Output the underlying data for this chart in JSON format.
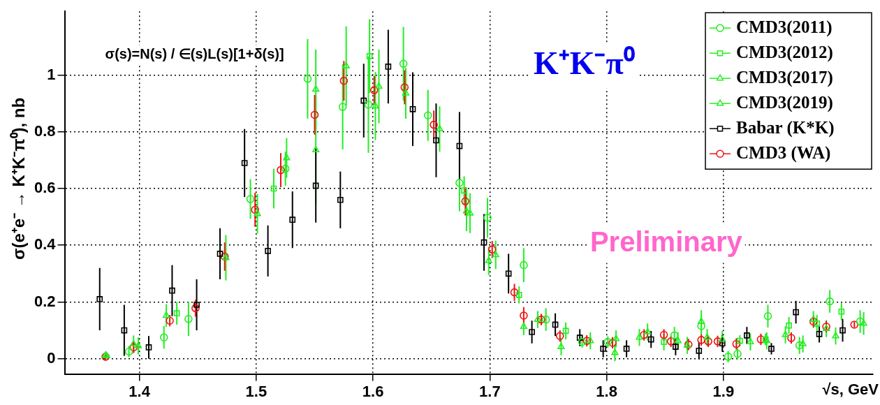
{
  "chart_data": {
    "type": "scatter",
    "xlabel": "√s, GeV",
    "ylabel": "σ(e⁺e⁻ → K⁺K⁻π⁰), nb",
    "annotations": [
      "σ(s)=N(s) / ∈(s)L(s)[1+δ(s)]",
      "K⁺K⁻π⁰",
      "Preliminary"
    ],
    "xlim": [
      1.336,
      2.028
    ],
    "ylim": [
      -0.054,
      1.225
    ],
    "xticks": [
      1.4,
      1.5,
      1.6,
      1.7,
      1.8,
      1.9
    ],
    "yticks": [
      0,
      0.2,
      0.4,
      0.6,
      0.8,
      1
    ],
    "grid": true,
    "line_style": "dotted",
    "legend": "top right",
    "series": [
      {
        "name": "CMD3(2011)",
        "color": "#22ee22",
        "marker": "circle",
        "x": [
          1.391,
          1.421,
          1.442,
          1.495,
          1.525,
          1.544,
          1.574,
          1.596,
          1.626,
          1.647,
          1.674,
          1.698,
          1.729,
          1.748,
          1.779,
          1.801,
          1.858,
          1.881,
          1.904,
          1.912,
          1.938,
          1.965,
          1.991,
          2.017
        ],
        "values": [
          0.025,
          0.075,
          0.14,
          0.563,
          0.67,
          0.987,
          0.888,
          0.896,
          1.04,
          0.858,
          0.62,
          0.497,
          0.33,
          0.138,
          0.059,
          0.059,
          0.082,
          0.115,
          0.007,
          0.017,
          0.15,
          0.047,
          0.202,
          0.131
        ],
        "errors": [
          0.02,
          0.04,
          0.06,
          0.07,
          0.06,
          0.14,
          0.15,
          0.17,
          0.13,
          0.09,
          0.1,
          0.07,
          0.06,
          0.04,
          0.02,
          0.02,
          0.03,
          0.03,
          0.02,
          0.02,
          0.04,
          0.03,
          0.04,
          0.04
        ]
      },
      {
        "name": "CMD3(2012)",
        "color": "#22ee22",
        "marker": "square",
        "x": [
          1.432,
          1.515,
          1.597,
          1.678,
          1.725,
          1.765,
          1.849,
          1.914,
          1.936,
          1.956,
          1.98,
          2.001
        ],
        "values": [
          0.16,
          0.6,
          1.067,
          0.593,
          0.225,
          0.098,
          0.059,
          0.063,
          0.068,
          0.117,
          0.124,
          0.166
        ],
        "errors": [
          0.04,
          0.07,
          0.13,
          0.05,
          0.03,
          0.03,
          0.03,
          0.02,
          0.02,
          0.03,
          0.03,
          0.03
        ]
      },
      {
        "name": "CMD3(2017)",
        "color": "#22ee22",
        "marker": "triangle",
        "x": [
          1.372,
          1.399,
          1.551,
          1.605,
          1.657,
          1.683,
          1.699,
          1.741,
          1.761,
          1.786,
          1.807,
          1.828,
          1.869,
          1.881,
          1.886,
          1.953,
          1.977,
          1.996,
          2.02
        ],
        "values": [
          0.01,
          0.045,
          0.736,
          0.96,
          0.81,
          0.513,
          0.345,
          0.138,
          0.042,
          0.063,
          0.021,
          0.075,
          0.047,
          0.131,
          0.075,
          0.084,
          0.138,
          0.08,
          0.124
        ],
        "errors": [
          0.01,
          0.03,
          0.19,
          0.13,
          0.08,
          0.07,
          0.05,
          0.03,
          0.03,
          0.03,
          0.03,
          0.03,
          0.03,
          0.04,
          0.03,
          0.03,
          0.03,
          0.03,
          0.04
        ]
      },
      {
        "name": "CMD3(2019)",
        "color": "#22ee22",
        "marker": "triangle",
        "x": [
          1.371,
          1.395,
          1.423,
          1.474,
          1.501,
          1.526,
          1.551,
          1.577,
          1.602,
          1.628,
          1.68,
          1.705,
          1.729,
          1.808,
          1.835,
          1.861,
          1.899,
          1.923,
          1.937,
          1.968,
          1.988
        ],
        "values": [
          0.012,
          0.052,
          0.152,
          0.356,
          0.511,
          0.708,
          0.95,
          1.032,
          0.891,
          0.936,
          0.52,
          0.366,
          0.113,
          0.07,
          0.094,
          0.063,
          0.068,
          0.059,
          0.063,
          0.052,
          0.106
        ],
        "errors": [
          0.01,
          0.03,
          0.04,
          0.08,
          0.07,
          0.07,
          0.14,
          0.14,
          0.12,
          0.09,
          0.07,
          0.05,
          0.03,
          0.03,
          0.03,
          0.03,
          0.03,
          0.03,
          0.03,
          0.03,
          0.03
        ]
      },
      {
        "name": "Babar (K*K)",
        "color": "#000000",
        "marker": "square",
        "x": [
          1.366,
          1.387,
          1.408,
          1.428,
          1.449,
          1.469,
          1.49,
          1.51,
          1.531,
          1.551,
          1.572,
          1.592,
          1.613,
          1.634,
          1.654,
          1.674,
          1.695,
          1.716,
          1.736,
          1.756,
          1.777,
          1.797,
          1.817,
          1.838,
          1.859,
          1.879,
          1.899,
          1.92,
          1.941,
          1.962,
          1.982,
          2.002
        ],
        "values": [
          0.21,
          0.1,
          0.04,
          0.24,
          0.19,
          0.37,
          0.69,
          0.38,
          0.49,
          0.61,
          0.56,
          0.91,
          1.03,
          0.88,
          0.77,
          0.75,
          0.41,
          0.3,
          0.094,
          0.12,
          0.074,
          0.035,
          0.035,
          0.068,
          0.042,
          0.028,
          0.054,
          0.082,
          0.035,
          0.164,
          0.087,
          0.1
        ],
        "errors": [
          0.11,
          0.09,
          0.04,
          0.09,
          0.09,
          0.09,
          0.12,
          0.09,
          0.1,
          0.13,
          0.1,
          0.13,
          0.13,
          0.13,
          0.13,
          0.12,
          0.1,
          0.07,
          0.04,
          0.04,
          0.03,
          0.03,
          0.03,
          0.03,
          0.03,
          0.03,
          0.03,
          0.03,
          0.02,
          0.04,
          0.03,
          0.04
        ]
      },
      {
        "name": "CMD3 (WA)",
        "color": "#ee1111",
        "marker": "circle",
        "x": [
          1.371,
          1.395,
          1.426,
          1.448,
          1.473,
          1.499,
          1.521,
          1.55,
          1.575,
          1.601,
          1.627,
          1.652,
          1.679,
          1.702,
          1.721,
          1.729,
          1.744,
          1.76,
          1.783,
          1.805,
          1.832,
          1.849,
          1.855,
          1.87,
          1.881,
          1.887,
          1.895,
          1.911,
          1.932,
          1.958,
          1.977,
          1.988,
          2.012
        ],
        "values": [
          0.007,
          0.04,
          0.134,
          0.178,
          0.36,
          0.525,
          0.665,
          0.86,
          0.98,
          0.947,
          0.957,
          0.825,
          0.555,
          0.385,
          0.234,
          0.152,
          0.138,
          0.08,
          0.063,
          0.056,
          0.084,
          0.084,
          0.061,
          0.05,
          0.066,
          0.061,
          0.061,
          0.052,
          0.068,
          0.073,
          0.131,
          0.113,
          0.12
        ],
        "errors": [
          0.01,
          0.02,
          0.02,
          0.03,
          0.05,
          0.06,
          0.06,
          0.07,
          0.07,
          0.05,
          0.06,
          0.05,
          0.05,
          0.03,
          0.03,
          0.03,
          0.02,
          0.02,
          0.02,
          0.02,
          0.02,
          0.02,
          0.02,
          0.02,
          0.02,
          0.02,
          0.02,
          0.02,
          0.02,
          0.02,
          0.02,
          0.02,
          0.01
        ]
      }
    ]
  }
}
